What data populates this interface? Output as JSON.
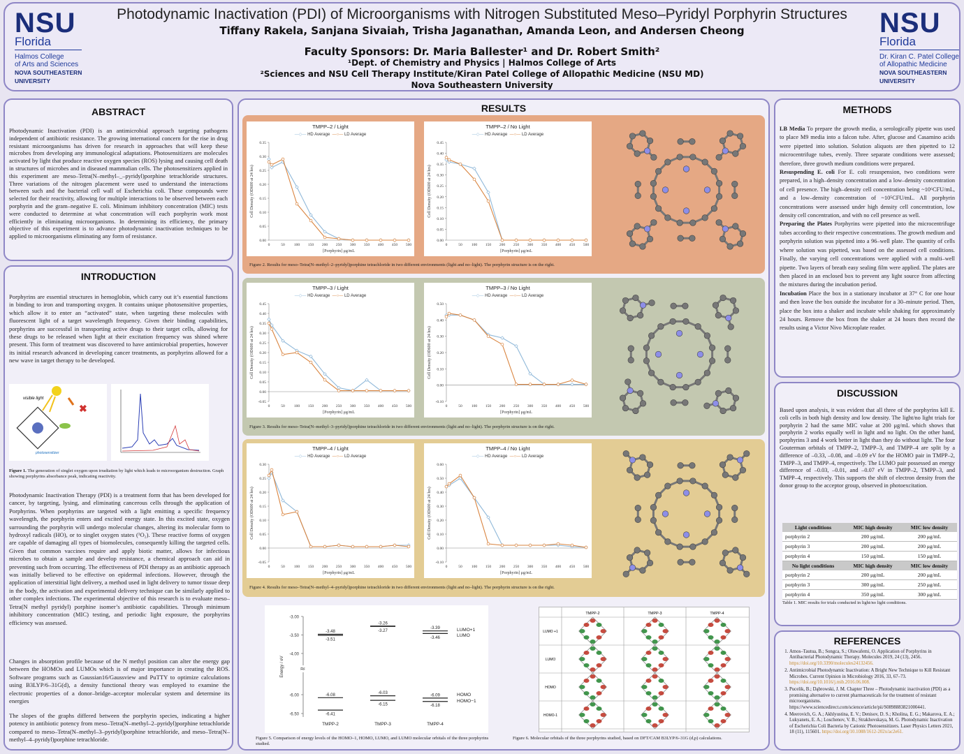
{
  "header": {
    "title": "Photodynamic Inactivation (PDI) of Microorganisms with Nitrogen Substituted Meso–Pyridyl Porphyrin Structures",
    "authors": "Tiffany Rakela, Sanjana Sivaiah, Trisha Jaganathan, Amanda Leon, and Andersen Cheong",
    "sponsors": "Faculty Sponsors: Dr. Maria Ballester¹ and Dr. Robert Smith²",
    "affil1": "¹Dept. of Chemistry and Physics | Halmos College of Arts",
    "affil2": "²Sciences and NSU Cell Therapy Institute/Kiran Patel College of Allopathic Medicine (NSU MD)",
    "affil3": "Nova Southeastern University",
    "logo_left": {
      "nsu": "NSU",
      "florida": "Florida",
      "college1": "Halmos College",
      "college2": "of Arts and Sciences",
      "univ1": "NOVA SOUTHEASTERN",
      "univ2": "UNIVERSITY"
    },
    "logo_right": {
      "nsu": "NSU",
      "florida": "Florida",
      "college1": "Dr. Kiran C. Patel College",
      "college2": "of Allopathic Medicine",
      "univ1": "NOVA SOUTHEASTERN",
      "univ2": "UNIVERSITY"
    }
  },
  "abstract": {
    "title": "ABSTRACT",
    "text": "Photodynamic Inactivation (PDI) is an antimicrobial approach targeting pathogens independent of antibiotic resistance. The growing international concern for the rise in drug resistant microorganisms has driven for research in approaches that will keep these microbes from developing any immunological adaptations. Photosensitizers are molecules activated by light that produce reactive oxygen species (ROS) lysing and causing cell death in structures of microbes and in diseased mammalian cells. The photosensitizers applied in this experiment are meso–Tetra(N–methyl–_–pyridyl)porphine tetrachloride structures. Three variations of the nitrogen placement were used to understand the interactions between such and the bacterial cell wall of Escherichia coli. These compounds were selected for their reactivity, allowing for multiple interactions to be observed between each porphyrin and the gram–negative E. coli. Minimum inhibitory concentration (MIC) tests were conducted to determine at what concentration will each porphyrin work most efficiently in eliminating microorganisms. In determining its efficiency, the primary objective of this experiment is to advance photodynamic inactivation techniques to be applied to microorganisms eliminating any form of resistance."
  },
  "introduction": {
    "title": "INTRODUCTION",
    "p1": "Porphyrins are essential structures in hemoglobin, which carry out it’s essential functions in binding to iron and transporting oxygen. It contains unique photosensitive properties, which allow it to enter an “activated” state, when targeting these molecules with fluorescent light of a target wavelength frequency. Given their binding capabilities, porphyrins are successful in transporting active drugs to their target cells, allowing for these drugs to be released when light at their excitation frequency was shined where present. This form of treatment was discovered to have antimicrobial properties, however its initial research advanced in developing cancer treatments, as porphyrins allowed for a new wave in target therapy to be developed.",
    "fig1_label": "Figure 1.",
    "fig1_caption": "The generation of singlet oxygen upon irradiation by light which leads to microorganism destruction. Graph showing porphyrins absorbance peak, indicating reactivity.",
    "fig1_left_label1": "visible light",
    "fig1_left_label2": "photosensitizer",
    "p2": "Photodynamic Inactivation Therapy (PDI) is a treatment form that has been developed for cancer, by targeting, lysing, and eliminating cancerous cells through the application of Porphyrins. When porphyrins are targeted with a light emitting a specific frequency wavelength, the porphyrin enters and excited energy state. In this excited state, oxygen surrounding the porphyrin will undergo molecular changes, altering its molecular form to hydroxyl radicals (HO), or to singlet oxygen states (¹O₂). These reactive forms of oxygen are capable of damaging all types of biomolecules, consequently killing the targeted cells. Given that common vaccines require and apply biotic matter, allows for infectious microbes to obtain a sample and develop resistance, a chemical approach can aid in preventing such from occurring. The effectiveness of PDI therapy as an antibiotic approach was initially believed to be effective on epidermal infections. However, through the application of interstitial light delivery, a method used in light delivery to tumor tissue deep in the body, the activation and experimental delivery technique can be similarly applied to other complex infections. The experimental objective of this research is to evaluate meso–Tetra(N methyl pyridyl) porphine isomer’s antibiotic capabilities. Through minimum inhibitory concentration (MIC) testing, and periodic light exposure, the porphyrins efficiency was assessed.",
    "p3": "Changes in absorption profile because of the N methyl position can alter the energy gap between the HOMOs and LUMOs which is of major importance in creating the ROS. Software programs such as Gaussian16/Gaussview and PuTTY to optimize calculations using B3LYP/6–31G(d), a density functional theory was employed to examine the electronic properties of a donor–bridge–acceptor molecular system and determine its energies",
    "p4": "The slopes of the graphs differed between the porphyrin species, indicating a higher potency in antibiotic potency from meso–Tetra(N–methyl–2–pyridyl)porphine tetrachloride compared to meso–Tetra(N–methyl–3–pyridyl)porphine tetrachloride, and meso–Tetra(N–methyl–4–pyridyl)porphine tetrachloride."
  },
  "results": {
    "title": "RESULTS",
    "legend_hd": "HD Average",
    "legend_ld": "LD Average",
    "xlabel": "[Porphyrin] μg/mL",
    "ylabel": "Cell Density (OD600 at 24 hrs)",
    "fig2_caption": "Figure 2. Results for meso–Tetra(N–methyl–2–pyridyl)porphine tetrachloride in two different environments (light and no–light). The porphyrin structure is on the right.",
    "fig3_caption": "Figure 3. Results for meso–Tetra(N–methyl–3–pyridyl)porphine tetrachloride in two different environments (light and no–light). The porphyrin structure is on the right.",
    "fig4_caption": "Figure 4. Results for meso–Tetra(N–methyl–4–pyridyl)porphine tetrachloride in two different environments (light and no–light). The porphyrin structure is on the right.",
    "fig5_caption": "Figure 5. Comparison of energy levels of the HOMO–1, HOMO, LUMO, and LUMO molecular orbitals of the three porphyrins studied.",
    "fig6_caption": "Figure 6. Molecular orbitals of the three porphyrins studied, based on DFT/CAM B3LYP/6–31G (d,p) calculations.",
    "fig6_cols": [
      "TMPP-2",
      "TMPP-3",
      "TMPP-4"
    ],
    "fig6_rows": [
      "LUMO +1",
      "LUMO",
      "HOMO",
      "HOMO-1"
    ],
    "colors": {
      "hd": "#8fb8d9",
      "ld": "#d9843f",
      "band1": "#e5a884",
      "band2": "#c3c8b0",
      "band3": "#e3cc94"
    }
  },
  "chart_data": [
    {
      "type": "line",
      "title": "TMPP–2 / Light",
      "x": [
        0,
        10,
        50,
        100,
        150,
        200,
        250,
        300,
        350,
        400,
        450,
        500
      ],
      "ylim": [
        0,
        0.35
      ],
      "yticks": [
        "0.00",
        "0.05",
        "0.10",
        "0.15",
        "0.20",
        "0.25",
        "0.30",
        "0.35"
      ],
      "series": [
        {
          "name": "HD Average",
          "values": [
            0.29,
            0.26,
            0.28,
            0.19,
            0.09,
            0.03,
            0.005,
            0,
            0,
            0,
            0,
            0
          ]
        },
        {
          "name": "LD Average",
          "values": [
            0.28,
            0.27,
            0.29,
            0.13,
            0.07,
            0.01,
            0.005,
            0,
            0,
            0,
            0,
            0
          ]
        }
      ]
    },
    {
      "type": "line",
      "title": "TMPP–2 / No Light",
      "x": [
        0,
        10,
        50,
        100,
        150,
        200,
        250,
        300,
        350,
        400,
        450,
        500
      ],
      "ylim": [
        0,
        0.45
      ],
      "yticks": [
        "0.00",
        "0.05",
        "0.10",
        "0.15",
        "0.20",
        "0.25",
        "0.30",
        "0.35",
        "0.40",
        "0.45"
      ],
      "series": [
        {
          "name": "HD Average",
          "values": [
            0.37,
            0.36,
            0.35,
            0.33,
            0.22,
            0,
            0,
            0,
            0,
            0,
            0,
            0
          ]
        },
        {
          "name": "LD Average",
          "values": [
            0.38,
            0.37,
            0.35,
            0.28,
            0.18,
            0,
            0,
            0,
            0,
            0,
            0,
            0
          ]
        }
      ]
    },
    {
      "type": "line",
      "title": "TMPP–3 / Light",
      "x": [
        0,
        10,
        50,
        100,
        150,
        200,
        250,
        300,
        350,
        400,
        450,
        500
      ],
      "ylim": [
        -0.05,
        0.45
      ],
      "yticks": [
        "-0.05",
        "0.00",
        "0.05",
        "0.10",
        "0.15",
        "0.20",
        "0.25",
        "0.30",
        "0.35",
        "0.40",
        "0.45"
      ],
      "series": [
        {
          "name": "HD Average",
          "values": [
            0.37,
            0.34,
            0.26,
            0.21,
            0.18,
            0.09,
            0.02,
            0.005,
            0.06,
            0.005,
            0.005,
            0.005
          ]
        },
        {
          "name": "LD Average",
          "values": [
            0.35,
            0.32,
            0.19,
            0.2,
            0.15,
            0.06,
            0.005,
            0.005,
            0.005,
            0.005,
            0.005,
            0.005
          ]
        }
      ]
    },
    {
      "type": "line",
      "title": "TMPP–3 / No Light",
      "x": [
        0,
        10,
        50,
        100,
        150,
        200,
        250,
        300,
        350,
        400,
        450,
        500
      ],
      "ylim": [
        -0.1,
        0.5
      ],
      "yticks": [
        "-0.10",
        "0.00",
        "0.10",
        "0.20",
        "0.30",
        "0.40",
        "0.50"
      ],
      "series": [
        {
          "name": "HD Average",
          "values": [
            0.43,
            0.43,
            0.43,
            0.4,
            0.31,
            0.29,
            0.24,
            0.07,
            0.005,
            0.005,
            0.005,
            0.005
          ]
        },
        {
          "name": "LD Average",
          "values": [
            0.42,
            0.44,
            0.43,
            0.4,
            0.3,
            0.25,
            0.005,
            0.005,
            0.005,
            0.005,
            0.03,
            0.005
          ]
        }
      ]
    },
    {
      "type": "line",
      "title": "TMPP–4 / Light",
      "x": [
        0,
        10,
        50,
        100,
        150,
        200,
        250,
        300,
        350,
        400,
        450,
        500
      ],
      "ylim": [
        -0.05,
        0.3
      ],
      "yticks": [
        "-0.05",
        "0.00",
        "0.05",
        "0.10",
        "0.15",
        "0.20",
        "0.25",
        "0.30"
      ],
      "series": [
        {
          "name": "HD Average",
          "values": [
            0.25,
            0.27,
            0.17,
            0.13,
            0.005,
            0.005,
            0.01,
            0.005,
            0.005,
            0.005,
            0.01,
            0.01
          ]
        },
        {
          "name": "LD Average",
          "values": [
            0.26,
            0.28,
            0.12,
            0.13,
            0.005,
            0.005,
            0.01,
            0.005,
            0.005,
            0.005,
            0.01,
            0.005
          ]
        }
      ]
    },
    {
      "type": "line",
      "title": "TMPP–4 / No Light",
      "x": [
        0,
        10,
        50,
        100,
        150,
        200,
        250,
        300,
        350,
        400,
        450,
        500
      ],
      "ylim": [
        -0.1,
        0.6
      ],
      "yticks": [
        "-0.10",
        "0.00",
        "0.10",
        "0.20",
        "0.30",
        "0.40",
        "0.50",
        "0.60"
      ],
      "series": [
        {
          "name": "HD Average",
          "values": [
            0.44,
            0.45,
            0.5,
            0.36,
            0.22,
            0.02,
            0.02,
            0.02,
            0.02,
            0.02,
            0.01,
            0.005
          ]
        },
        {
          "name": "LD Average",
          "values": [
            0.44,
            0.46,
            0.52,
            0.36,
            0.03,
            0.02,
            0.02,
            0.02,
            0.02,
            0.03,
            0.02,
            0.005
          ]
        }
      ]
    },
    {
      "type": "energy-levels",
      "title": "",
      "ylabel": "Energy / eV",
      "yticks": [
        "-3.00",
        "-3.50",
        "-4.00",
        "-6.00",
        "-6.50"
      ],
      "categories": [
        "TMPP-2",
        "TMPP-3",
        "TMPP-4"
      ],
      "lumo1": [
        -3.48,
        -3.26,
        -3.39
      ],
      "lumo": [
        -3.51,
        -3.27,
        -3.46
      ],
      "homo": [
        -6.08,
        -6.03,
        -6.09
      ],
      "homo1": [
        -6.41,
        -6.15,
        -6.18
      ],
      "labels": [
        "LUMO+1",
        "LUMO",
        "HOMO",
        "HOMO−1"
      ]
    }
  ],
  "methods": {
    "title": "METHODS",
    "p1_head": "LB Media",
    "p1": "To prepare the growth media, a serologically pipette was used to place M9 media into a falcon tube. After, glucose and Casamino acids were pipetted into solution. Solution aliquots are then pipetted to 12 microcentrifuge tubes, evenly. Three separate conditions were assessed; therefore, three growth medium conditions were prepared.",
    "p2_head": "Resuspending E. coli",
    "p2": "For E. coli resuspension, two conditions were prepared, in a high–density concentration and a low–density concentration of cell presence. The high–density cell concentration being ~10⁶CFU/mL, and a low–density concentration of ~10⁵CFU/mL. All porphyrin concentrations were assessed under high density cell concentration, low density cell concentration, and with no cell presence as well.",
    "p3_head": "Preparing the Plates",
    "p3": "Porphyrins were pipetted into the microcentrifuge tubes according to their respective concentrations. The growth medium and porphyrin solution was pipetted into a 96–well plate. The quantity of cells where solution was pipetted, was based on the assessed cell conditions. Finally, the varying cell concentrations were applied with a multi–well pipette. Two layers of breath easy sealing film were applied. The plates are then placed in an enclosed box to prevent any light source from affecting the mixtures during the incubation period.",
    "p4_head": "Incubation",
    "p4": "Place the box in a stationary incubator at 37° C for one hour and then leave the box outside the incubator for a 30–minute period. Then, place the box into a shaker and incubate while shaking for approximately 24 hours. Remove the box from the shaker at 24 hours then record the results using a Victor Nivo Microplate reader."
  },
  "discussion": {
    "title": "DISCUSSION",
    "text": "Based upon analysis, it was evident that all three of the porphyrins kill E. coli cells in both high density and low density. The light/no light trials for porphyrin 2 had the same MIC value at 200 μg/mL which shows that porphyrin 2 works equally well in light and no light. On the other hand, porphyrins 3 and 4 work better in light than they do without light. The four Gouterman orbitals of TMPP–2, TMPP–3, and TMPP–4 are split by a difference of –0.33, –0.08, and –0.09 eV for the HOMO pair in TMPP–2, TMPP–3, and TMPP–4, respectively. The LUMO pair possessed an energy difference of –0.03, –0.01, and –0.07 eV in TMPP–2, TMPP–3, and TMPP–4, respectively. This supports the shift of electron density from the donor group to the acceptor group, observed in photoexcitation.",
    "table": {
      "head1": [
        "Light conditions",
        "MIC high density",
        "MIC low density"
      ],
      "rows1": [
        [
          "porphyrin 2",
          "200 μg/mL",
          "200 μg/mL"
        ],
        [
          "porphyrin 3",
          "200 μg/mL",
          "200 μg/mL"
        ],
        [
          "porphyrin 4",
          "150 μg/mL",
          "150 μg/mL"
        ]
      ],
      "head2": [
        "No light conditions",
        "MIC high density",
        "MIC low density"
      ],
      "rows2": [
        [
          "porphyrin 2",
          "200 μg/mL",
          "200 μg/mL"
        ],
        [
          "porphyrin 3",
          "300 μg/mL",
          "250 μg/mL"
        ],
        [
          "porphyrin 4",
          "350 μg/mL",
          "300 μg/mL"
        ]
      ],
      "caption": "Table 1. MIC results for trials conducted in light/no light conditions."
    }
  },
  "references": {
    "title": "REFERENCES",
    "items": [
      {
        "text": "Amos–Tautua, B.; Songca, S.; Oluwafemi, O. Application of Porphyrins in Antibacterial Photodynamic Therapy. Molecules 2019, 24 (13), 2456.",
        "link": "https://doi.org/10.3390/molecules24132456."
      },
      {
        "text": "Antimicrobial Photodynamic Inactivation: A Bright New Technique to Kill Resistant Microbes. Current Opinion in Microbiology 2016, 33, 67–73.",
        "link": "https://doi.org/10.1016/j.mib.2016.06.008."
      },
      {
        "text": "Pucelik, B.; Dąbrowski, J. M. Chapter Three – Photodynamic inactivation (PDI) as a promising alternative to current pharmaceuticals for the treatment of resistant microorganisms. https://www.sciencedirect.com/science/article/pii/S0898883821000441.",
        "link": ""
      },
      {
        "text": "Meerovich, G. A.; Akhlyustina, E. V.; Denisov, D. S.; Kholina, E. G.; Makarova, E. A.; Lukyanets, E. A.; Loschenov, V. B.; Strakhovskaya, M. G. Photodynamic Inactivation of Escherichia Coli Bacteria by Cationic Photosensitizers. Laser Physics Letters 2021, 18 (11), 115601.",
        "link": "https://doi.org/10.1088/1612-202x/ac2e61."
      }
    ]
  }
}
